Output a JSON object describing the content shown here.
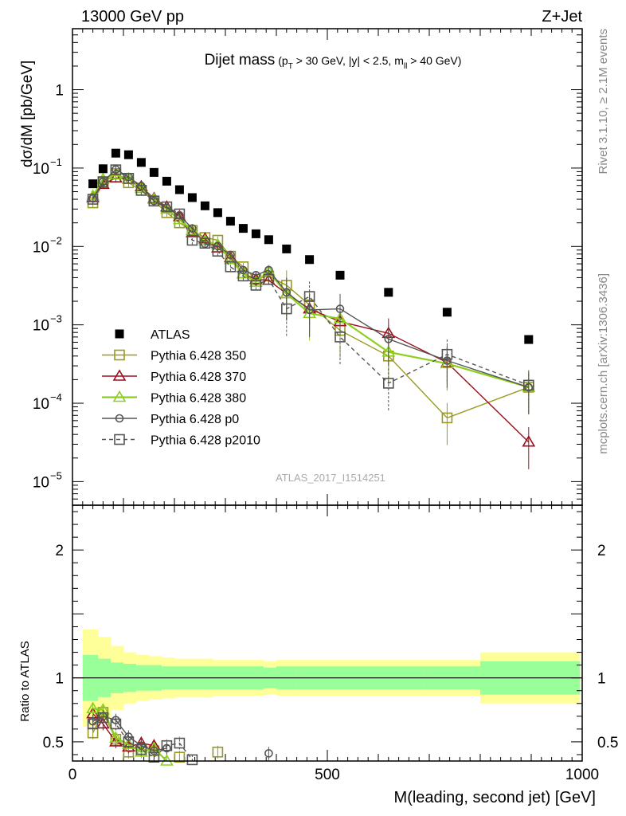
{
  "header": {
    "left": "13000 GeV pp",
    "right": "Z+Jet"
  },
  "side_labels": {
    "rivet": "Rivet 3.1.10, ≥ 2.1M events",
    "mcplots": "mcplots.cern.ch [arXiv:1306.3436]"
  },
  "watermark": "ATLAS_2017_I1514251",
  "colors": {
    "ATLAS": "#000000",
    "p350": "#9a9a1e",
    "p370": "#9b1020",
    "p380": "#8ccf1e",
    "p0": "#555555",
    "p2010": "#555555",
    "band_inner": "#99ff99",
    "band_outer": "#ffff99"
  },
  "chart_data": [
    {
      "type": "scatter",
      "title": "Dijet mass",
      "title_sub": "(p_T > 30 GeV, |y| < 2.5, m_ll > 40 GeV)",
      "ylabel": "dσ/dM [pb/GeV]",
      "yscale": "log",
      "xlim": [
        0,
        1000
      ],
      "ylim": [
        5e-06,
        6
      ],
      "y_ticks": [
        {
          "value": 1e-05,
          "label": "10",
          "exp": "−5"
        },
        {
          "value": 0.0001,
          "label": "10",
          "exp": "−4"
        },
        {
          "value": 0.001,
          "label": "10",
          "exp": "−3"
        },
        {
          "value": 0.01,
          "label": "10",
          "exp": "−2"
        },
        {
          "value": 0.1,
          "label": "10",
          "exp": "−1"
        },
        {
          "value": 1,
          "label": "1",
          "exp": ""
        }
      ],
      "legend_position": "middle-left",
      "x": [
        40,
        60,
        85,
        110,
        135,
        160,
        185,
        210,
        235,
        260,
        285,
        310,
        335,
        360,
        385,
        420,
        465,
        525,
        620,
        735,
        895
      ],
      "series": [
        {
          "name": "ATLAS",
          "marker": "filled-square",
          "line": "none",
          "values": [
            0.063,
            0.098,
            0.155,
            0.148,
            0.118,
            0.088,
            0.068,
            0.053,
            0.042,
            0.033,
            0.027,
            0.021,
            0.017,
            0.0145,
            0.0122,
            0.0093,
            0.0068,
            0.0043,
            0.0026,
            0.00145,
            0.00065
          ]
        },
        {
          "name": "Pythia 6.428 350",
          "marker": "open-square",
          "line": "solid",
          "values": [
            0.036,
            0.065,
            0.085,
            0.065,
            0.052,
            0.038,
            0.027,
            0.02,
            0.016,
            0.013,
            0.012,
            0.0075,
            0.0055,
            0.0038,
            0.0042,
            0.0032,
            0.0018,
            0.00085,
            0.0004,
            6.5e-05,
            0.00016
          ]
        },
        {
          "name": "Pythia 6.428 370",
          "marker": "open-triangle",
          "line": "solid",
          "values": [
            0.042,
            0.062,
            0.075,
            0.072,
            0.058,
            0.041,
            0.032,
            0.024,
            0.015,
            0.0125,
            0.0096,
            0.0072,
            0.0045,
            0.0038,
            0.0037,
            0.0025,
            0.0016,
            0.0011,
            0.00078,
            0.00033,
            3.2e-05
          ]
        },
        {
          "name": "Pythia 6.428 380",
          "marker": "open-triangle",
          "line": "solid",
          "values": [
            0.044,
            0.072,
            0.082,
            0.072,
            0.055,
            0.04,
            0.03,
            0.022,
            0.016,
            0.0118,
            0.0105,
            0.0068,
            0.0045,
            0.0035,
            0.0048,
            0.0025,
            0.0014,
            0.0012,
            0.00045,
            0.00032,
            0.00016
          ]
        },
        {
          "name": "Pythia 6.428 p0",
          "marker": "open-circle",
          "line": "solid",
          "values": [
            0.041,
            0.067,
            0.096,
            0.077,
            0.059,
            0.038,
            0.031,
            0.025,
            0.017,
            0.0108,
            0.0101,
            0.0078,
            0.005,
            0.0043,
            0.005,
            0.0026,
            0.00155,
            0.0016,
            0.00066,
            0.00035,
            0.00016
          ]
        },
        {
          "name": "Pythia 6.428 p2010",
          "marker": "open-square",
          "line": "dashed",
          "values": [
            0.04,
            0.067,
            0.095,
            0.074,
            0.052,
            0.038,
            0.032,
            0.026,
            0.012,
            0.011,
            0.0087,
            0.0055,
            0.0042,
            0.0032,
            0.0038,
            0.0016,
            0.0023,
            0.0007,
            0.00018,
            0.00042,
            0.00017
          ]
        }
      ]
    },
    {
      "type": "scatter",
      "ylabel": "Ratio to ATLAS",
      "xlabel": "M(leading, second jet) [GeV]",
      "xlim": [
        0,
        1000
      ],
      "ylim": [
        0.35,
        2.35
      ],
      "x_ticks": [
        0,
        500,
        1000
      ],
      "y_ticks": [
        0.5,
        1,
        2
      ],
      "bands": {
        "edges": [
          20,
          50,
          75,
          100,
          125,
          150,
          175,
          200,
          225,
          250,
          275,
          300,
          325,
          350,
          375,
          400,
          440,
          500,
          575,
          690,
          800,
          995
        ],
        "inner_lo": [
          0.82,
          0.85,
          0.88,
          0.89,
          0.9,
          0.9,
          0.91,
          0.91,
          0.91,
          0.91,
          0.91,
          0.91,
          0.91,
          0.91,
          0.92,
          0.91,
          0.91,
          0.91,
          0.91,
          0.91,
          0.87
        ],
        "inner_hi": [
          1.18,
          1.15,
          1.12,
          1.11,
          1.1,
          1.1,
          1.09,
          1.09,
          1.09,
          1.09,
          1.09,
          1.09,
          1.09,
          1.09,
          1.08,
          1.09,
          1.09,
          1.09,
          1.09,
          1.09,
          1.13
        ],
        "outer_lo": [
          0.62,
          0.68,
          0.75,
          0.8,
          0.82,
          0.83,
          0.84,
          0.85,
          0.85,
          0.85,
          0.86,
          0.86,
          0.86,
          0.86,
          0.87,
          0.86,
          0.86,
          0.86,
          0.86,
          0.86,
          0.8
        ],
        "outer_hi": [
          1.38,
          1.32,
          1.25,
          1.2,
          1.18,
          1.17,
          1.16,
          1.15,
          1.15,
          1.15,
          1.14,
          1.14,
          1.14,
          1.14,
          1.13,
          1.14,
          1.14,
          1.14,
          1.14,
          1.14,
          1.2
        ]
      },
      "x": [
        40,
        60,
        85,
        110,
        135,
        160,
        185,
        210,
        235,
        260,
        285,
        310,
        335,
        360,
        385
      ],
      "series": [
        {
          "name": "Pythia 6.428 350",
          "values": [
            0.57,
            0.73,
            0.52,
            0.42,
            0.44,
            0.43,
            null,
            0.38,
            null,
            null,
            0.42,
            null,
            null,
            null,
            null
          ]
        },
        {
          "name": "Pythia 6.428 370",
          "values": [
            0.72,
            0.64,
            0.5,
            0.46,
            0.49,
            0.47,
            null,
            null,
            null,
            null,
            null,
            null,
            null,
            null,
            null
          ]
        },
        {
          "name": "Pythia 6.428 380",
          "values": [
            0.76,
            0.75,
            0.53,
            0.48,
            0.42,
            0.45,
            0.35,
            null,
            null,
            null,
            null,
            null,
            null,
            null,
            0.33
          ]
        },
        {
          "name": "Pythia 6.428 p0",
          "values": [
            0.66,
            0.7,
            0.67,
            0.54,
            0.47,
            0.43,
            0.45,
            null,
            null,
            null,
            null,
            null,
            null,
            null,
            0.41
          ]
        },
        {
          "name": "Pythia 6.428 p2010",
          "values": [
            0.64,
            0.69,
            0.64,
            0.5,
            0.44,
            0.38,
            0.47,
            0.49,
            0.36,
            null,
            null,
            null,
            null,
            null,
            null
          ]
        }
      ]
    }
  ]
}
